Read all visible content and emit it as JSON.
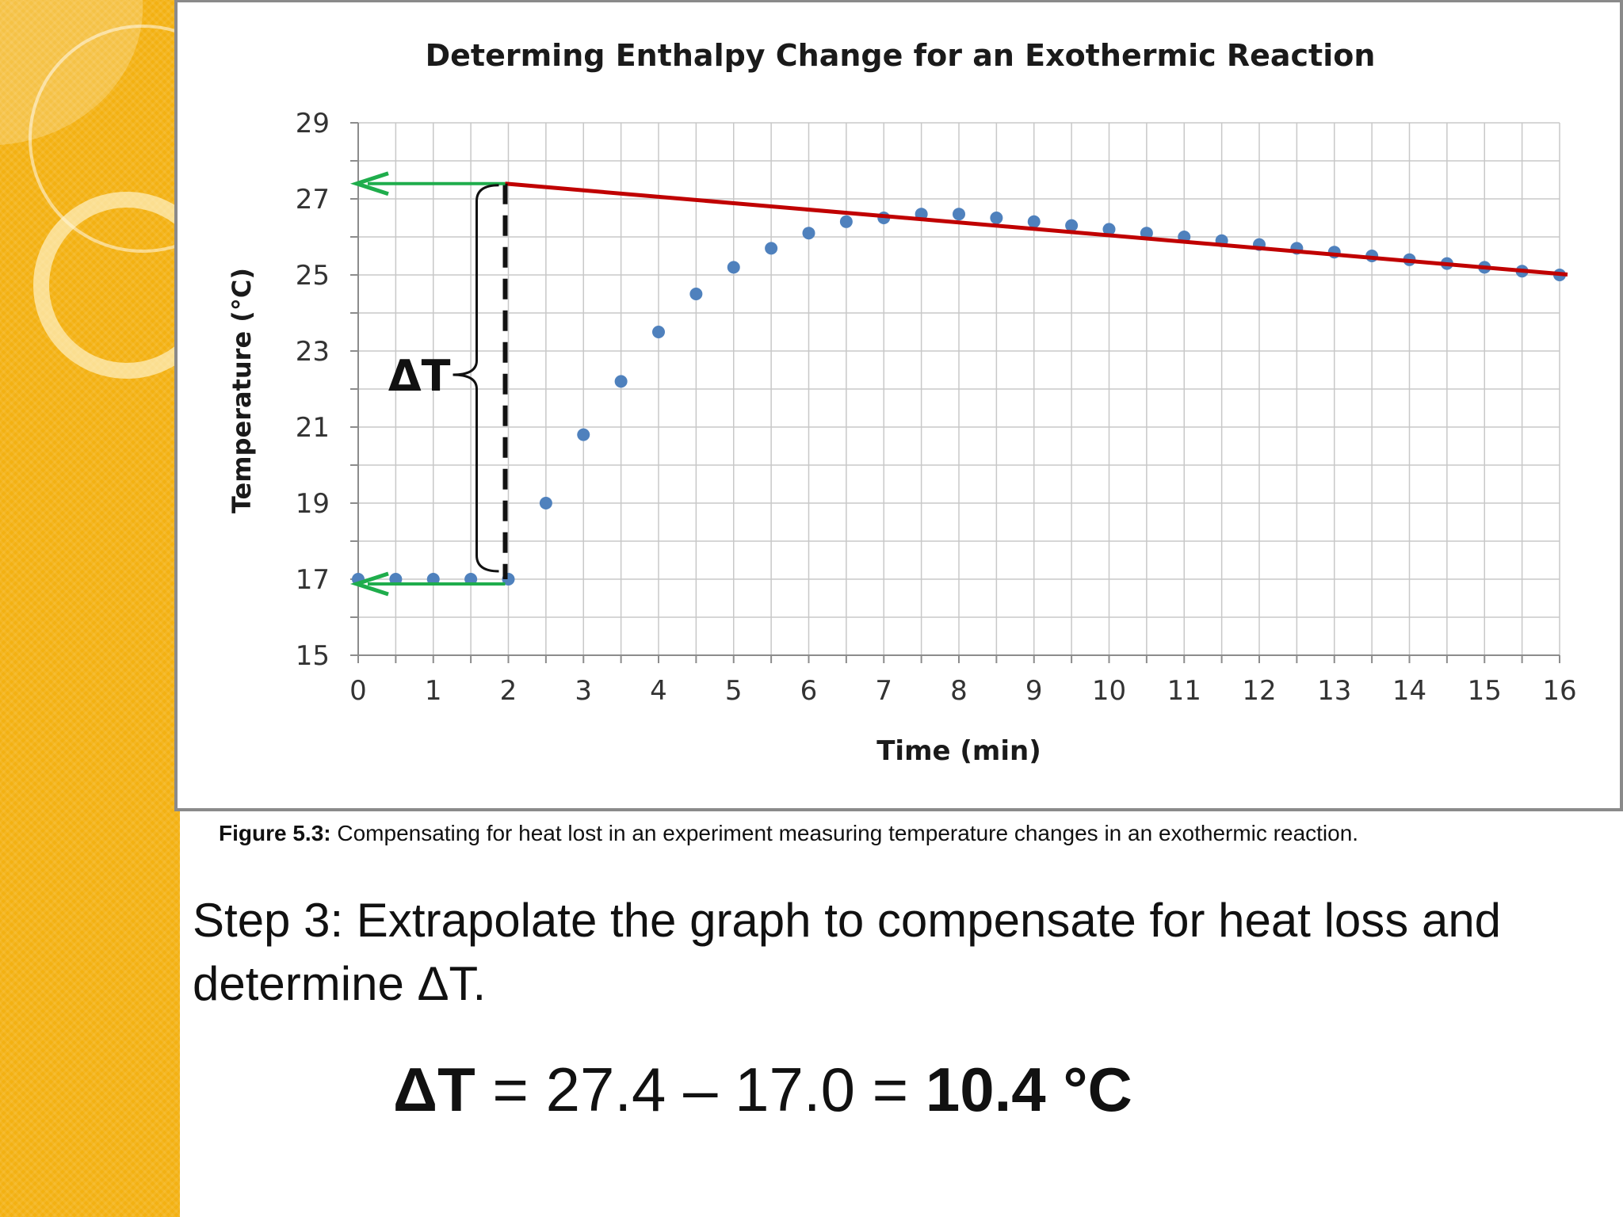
{
  "theme": {
    "sidebar": "#f3b112",
    "series": "#4f81bd",
    "fit_line": "#c00000",
    "arrow": "#1fad4c",
    "grid": "#c8c8c8"
  },
  "chart_data": {
    "type": "scatter",
    "title": "Determing Enthalpy Change for an Exothermic Reaction",
    "xlabel": "Time (min)",
    "ylabel": "Temperature (°C)",
    "xlim": [
      0,
      16
    ],
    "ylim": [
      15,
      29
    ],
    "x_ticks": [
      0,
      1,
      2,
      3,
      4,
      5,
      6,
      7,
      8,
      9,
      10,
      11,
      12,
      13,
      14,
      15,
      16
    ],
    "y_ticks": [
      15,
      17,
      19,
      21,
      23,
      25,
      27,
      29
    ],
    "grid": true,
    "series": [
      {
        "x": [
          0,
          0.5,
          1,
          1.5,
          2,
          2.5,
          3,
          3.5,
          4,
          4.5,
          5,
          5.5,
          6,
          6.5,
          7,
          7.5,
          8,
          8.5,
          9,
          9.5,
          10,
          10.5,
          11,
          11.5,
          12,
          12.5,
          13,
          13.5,
          14,
          14.5,
          15,
          15.5,
          16
        ],
        "y": [
          17.0,
          17.0,
          17.0,
          17.0,
          17.0,
          19.0,
          20.8,
          22.2,
          23.5,
          24.5,
          25.2,
          25.7,
          26.1,
          26.4,
          26.5,
          26.6,
          26.6,
          26.5,
          26.4,
          26.3,
          26.2,
          26.1,
          26.0,
          25.9,
          25.8,
          25.7,
          25.6,
          25.5,
          25.4,
          25.3,
          25.2,
          25.1,
          25.0
        ]
      }
    ],
    "extrapolation_line": {
      "x": [
        2,
        16
      ],
      "y": [
        27.4,
        25.0
      ]
    },
    "annotation": "ΔT",
    "markers": {
      "time": 2,
      "high": 27.4,
      "low": 17.0
    }
  },
  "caption": {
    "label": "Figure 5.3:",
    "text": " Compensating for heat lost in an experiment measuring temperature changes in an exothermic reaction."
  },
  "step": {
    "text": "Step 3: Extrapolate the graph to compensate for heat loss and determine ΔT."
  },
  "equation": {
    "symbol": "ΔT",
    "middle": " = 27.4 – 17.0 = ",
    "result": "10.4 °C"
  }
}
